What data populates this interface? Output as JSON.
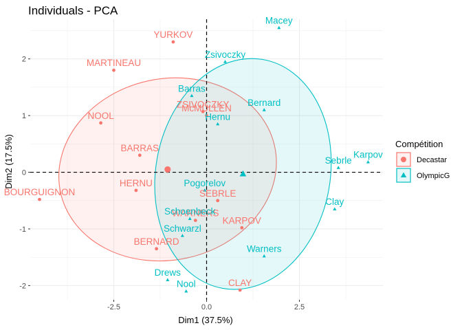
{
  "chart_data": {
    "type": "scatter",
    "title": "Individuals - PCA",
    "xlabel": "Dim1 (37.5%)",
    "ylabel": "Dim2 (17.5%)",
    "xlim": [
      -4.75,
      4.75
    ],
    "ylim": [
      -2.25,
      2.7
    ],
    "xticks": [
      -2.5,
      0,
      2.5
    ],
    "xtick_labels": [
      "-2.5",
      "0.0",
      "2.5"
    ],
    "yticks": [
      -2,
      -1,
      0,
      1,
      2
    ],
    "ytick_labels": [
      "-2",
      "-1",
      "0",
      "1",
      "2"
    ],
    "grid": true,
    "legend": {
      "title": "Compétition",
      "position": "right"
    },
    "series": [
      {
        "name": "Decastar",
        "color": "#F8766D",
        "marker": "circle",
        "centroid": [
          -1.05,
          0.05
        ],
        "ellipse": {
          "center": [
            -1.05,
            0.05
          ],
          "rx": 2.95,
          "ry": 1.6,
          "angle_deg": -12
        },
        "points": [
          {
            "label": "YURKOV",
            "x": -0.9,
            "y": 2.3
          },
          {
            "label": "MARTINEAU",
            "x": -2.5,
            "y": 1.8
          },
          {
            "label": "NOOL",
            "x": -2.85,
            "y": 0.87
          },
          {
            "label": "BARRAS",
            "x": -1.8,
            "y": 0.3
          },
          {
            "label": "HERNU",
            "x": -1.9,
            "y": -0.32
          },
          {
            "label": "ZSIVOCZKY",
            "x": -0.1,
            "y": 1.07
          },
          {
            "label": "McMULLEN",
            "x": 0.0,
            "y": 1.0
          },
          {
            "label": "SEBRLE",
            "x": 0.3,
            "y": -0.5
          },
          {
            "label": "WARNERS",
            "x": -0.3,
            "y": -0.85
          },
          {
            "label": "KARPOV",
            "x": 0.95,
            "y": -0.98
          },
          {
            "label": "BERNARD",
            "x": -1.35,
            "y": -1.35
          },
          {
            "label": "CLAY",
            "x": 0.9,
            "y": -2.08
          },
          {
            "label": "BOURGUIGNON",
            "x": -4.5,
            "y": -0.48
          }
        ]
      },
      {
        "name": "OlympicG",
        "color": "#00BFC4",
        "marker": "triangle",
        "centroid": [
          0.98,
          -0.03
        ],
        "ellipse": {
          "center": [
            0.98,
            -0.03
          ],
          "rx": 2.35,
          "ry": 2.05,
          "angle_deg": 10
        },
        "points": [
          {
            "label": "Macey",
            "x": 1.95,
            "y": 2.55
          },
          {
            "label": "Zsivoczky",
            "x": 0.5,
            "y": 1.95
          },
          {
            "label": "Barras",
            "x": -0.4,
            "y": 1.35
          },
          {
            "label": "Bernard",
            "x": 1.55,
            "y": 1.1
          },
          {
            "label": "Hernu",
            "x": 0.3,
            "y": 0.85
          },
          {
            "label": "Sebrle",
            "x": 3.55,
            "y": 0.08
          },
          {
            "label": "Karpov",
            "x": 4.35,
            "y": 0.18
          },
          {
            "label": "Pogorelov",
            "x": -0.05,
            "y": -0.32
          },
          {
            "label": "Schoenbeck",
            "x": -0.45,
            "y": -0.82
          },
          {
            "label": "Schwarzl",
            "x": -0.65,
            "y": -1.12
          },
          {
            "label": "Clay",
            "x": 3.45,
            "y": -0.65
          },
          {
            "label": "Warners",
            "x": 1.55,
            "y": -1.48
          },
          {
            "label": "Drews",
            "x": -1.05,
            "y": -1.9
          },
          {
            "label": "Nool",
            "x": -0.55,
            "y": -2.1
          }
        ]
      }
    ]
  }
}
